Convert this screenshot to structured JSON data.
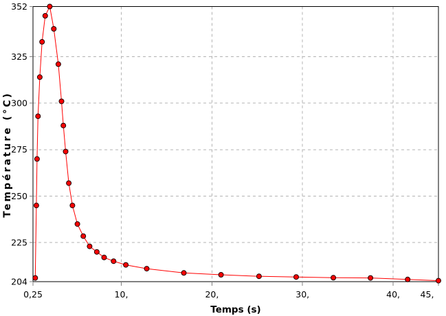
{
  "chart_data": {
    "type": "line",
    "title": "",
    "xlabel": "Temps (s)",
    "ylabel": "Température (°C)",
    "xlim": [
      0.25,
      45
    ],
    "ylim": [
      204,
      352
    ],
    "legend": "none",
    "grid": {
      "style": "dashed",
      "color": "#b3b3b3",
      "x_values": [
        10,
        20,
        30,
        40
      ],
      "y_values": [
        225,
        250,
        275,
        300,
        325
      ]
    },
    "x_ticks": [
      {
        "value": 0.25,
        "label": "0,25"
      },
      {
        "value": 10,
        "label": "10,"
      },
      {
        "value": 20,
        "label": "20,"
      },
      {
        "value": 30,
        "label": "30,"
      },
      {
        "value": 40,
        "label": "40,"
      },
      {
        "value": 45,
        "label": "45,"
      }
    ],
    "y_ticks": [
      {
        "value": 204,
        "label": "204"
      },
      {
        "value": 225,
        "label": "225"
      },
      {
        "value": 250,
        "label": "250"
      },
      {
        "value": 275,
        "label": "275"
      },
      {
        "value": 300,
        "label": "300"
      },
      {
        "value": 325,
        "label": "325"
      },
      {
        "value": 352,
        "label": "352"
      }
    ],
    "series": [
      {
        "name": "Température",
        "color": "#ff0000",
        "marker": "circle",
        "marker_fill": "#ff0000",
        "marker_outline": "#1a0000",
        "x": [
          0.5,
          0.62,
          0.7,
          0.8,
          1.0,
          1.25,
          1.6,
          2.1,
          2.55,
          3.05,
          3.4,
          3.6,
          3.85,
          4.2,
          4.6,
          5.15,
          5.8,
          6.5,
          7.3,
          8.1,
          9.15,
          10.5,
          12.8,
          16.9,
          21.0,
          25.2,
          29.3,
          33.4,
          37.5,
          41.6,
          45.0
        ],
        "y": [
          206,
          245,
          270,
          293,
          314,
          333,
          347,
          352,
          340,
          321,
          301,
          288,
          274,
          257,
          245,
          235,
          228.5,
          223,
          220,
          217,
          215,
          213,
          211,
          208.7,
          207.7,
          206.9,
          206.5,
          206.1,
          206.0,
          205.2,
          204.5
        ]
      }
    ],
    "colors": {
      "axis_frame": "#000000",
      "tick_marks": "#808080",
      "text": "#000000",
      "background": "#ffffff"
    }
  }
}
